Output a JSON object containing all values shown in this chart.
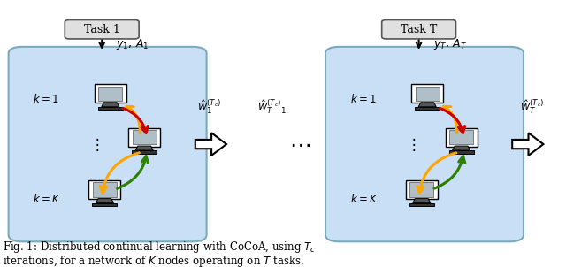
{
  "figsize": [
    6.4,
    3.02
  ],
  "dpi": 100,
  "bg_color": "#ffffff",
  "box_color": "#c8dff5",
  "box_edge_color": "#7aaabb",
  "task_box_color": "#e0e0e0",
  "task_box_edge": "#555555",
  "caption_line1": "Fig. 1: Distributed continual learning with CoCoA, using $T_c$",
  "caption_line2": "iterations, for a network of $K$ nodes operating on $T$ tasks."
}
